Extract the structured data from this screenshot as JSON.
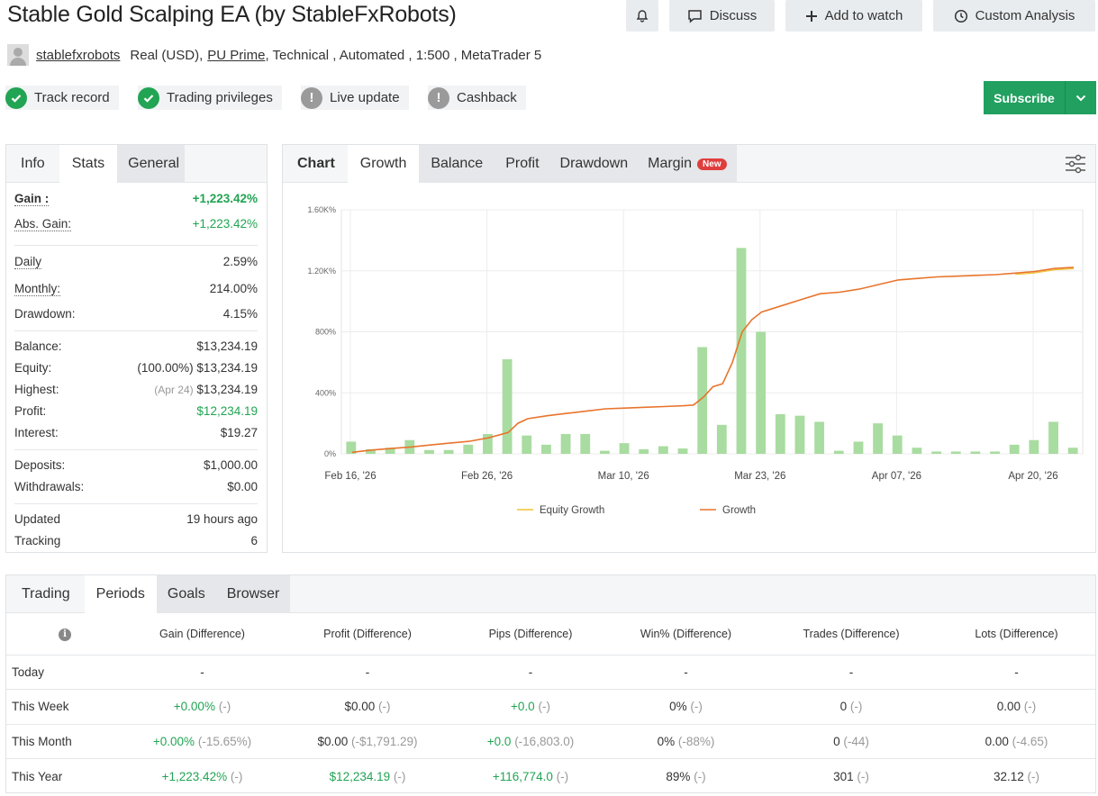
{
  "header": {
    "title": "Stable Gold Scalping EA (by StableFxRobots)",
    "buttons": {
      "discuss": "Discuss",
      "add_to_watch": "Add to watch",
      "custom_analysis": "Custom Analysis"
    }
  },
  "meta": {
    "author": "stablefxrobots",
    "account": "Real (USD),",
    "broker": "PU Prime",
    "details": ", Technical , Automated , 1:500 , MetaTrader 5"
  },
  "badges": [
    {
      "label": "Track record",
      "status": "ok"
    },
    {
      "label": "Trading privileges",
      "status": "ok"
    },
    {
      "label": "Live update",
      "status": "warn"
    },
    {
      "label": "Cashback",
      "status": "warn"
    }
  ],
  "subscribe_label": "Subscribe",
  "stats_tabs": [
    "Info",
    "Stats",
    "General"
  ],
  "stats": {
    "gain_label": "Gain :",
    "gain": "+1,223.42%",
    "abs_gain_label": "Abs. Gain:",
    "abs_gain": "+1,223.42%",
    "daily_label": "Daily",
    "daily": "2.59%",
    "monthly_label": "Monthly:",
    "monthly": "214.00%",
    "drawdown_label": "Drawdown:",
    "drawdown": "4.15%",
    "balance_label": "Balance:",
    "balance": "$13,234.19",
    "equity_label": "Equity:",
    "equity_pct": "(100.00%)",
    "equity": "$13,234.19",
    "highest_label": "Highest:",
    "highest_date": "(Apr 24)",
    "highest": "$13,234.19",
    "profit_label": "Profit:",
    "profit": "$12,234.19",
    "interest_label": "Interest:",
    "interest": "$19.27",
    "deposits_label": "Deposits:",
    "deposits": "$1,000.00",
    "withdrawals_label": "Withdrawals:",
    "withdrawals": "$0.00",
    "updated_label": "Updated",
    "updated": "19 hours ago",
    "tracking_label": "Tracking",
    "tracking": "6"
  },
  "chart_tabs": [
    "Chart",
    "Growth",
    "Balance",
    "Profit",
    "Drawdown",
    "Margin"
  ],
  "chart_new_badge": "New",
  "chart_data": {
    "type": "bar+line",
    "yticks": [
      "0%",
      "400%",
      "800%",
      "1.20K%",
      "1.60K%"
    ],
    "ylim": [
      0,
      1600
    ],
    "xticks": [
      "Feb 16, '26",
      "Feb 26, '26",
      "Mar 10, '26",
      "Mar 23, '26",
      "Apr 07, '26",
      "Apr 20, '26"
    ],
    "legend": [
      "Equity Growth",
      "Growth"
    ],
    "daily_bars": [
      80,
      30,
      40,
      90,
      25,
      25,
      60,
      130,
      620,
      120,
      60,
      130,
      130,
      20,
      70,
      30,
      50,
      35,
      700,
      190,
      1350,
      800,
      260,
      250,
      210,
      20,
      80,
      200,
      120,
      40,
      15,
      15,
      15,
      15,
      60,
      90,
      210,
      40
    ],
    "growth": [
      [
        0,
        10
      ],
      [
        1,
        25
      ],
      [
        2,
        35
      ],
      [
        3,
        45
      ],
      [
        4,
        58
      ],
      [
        5,
        70
      ],
      [
        6,
        82
      ],
      [
        7,
        105
      ],
      [
        8,
        140
      ],
      [
        8.5,
        200
      ],
      [
        9,
        230
      ],
      [
        10,
        250
      ],
      [
        11,
        265
      ],
      [
        12,
        280
      ],
      [
        13,
        295
      ],
      [
        14,
        300
      ],
      [
        15,
        305
      ],
      [
        16,
        310
      ],
      [
        17,
        315
      ],
      [
        17.5,
        320
      ],
      [
        18,
        370
      ],
      [
        18.5,
        440
      ],
      [
        19,
        460
      ],
      [
        19.5,
        600
      ],
      [
        20,
        800
      ],
      [
        20.5,
        880
      ],
      [
        21,
        930
      ],
      [
        22,
        970
      ],
      [
        23,
        1010
      ],
      [
        24,
        1050
      ],
      [
        25,
        1060
      ],
      [
        26,
        1080
      ],
      [
        27,
        1110
      ],
      [
        28,
        1140
      ],
      [
        29,
        1150
      ],
      [
        30,
        1160
      ],
      [
        31,
        1165
      ],
      [
        32,
        1170
      ],
      [
        33,
        1175
      ],
      [
        34,
        1185
      ],
      [
        35,
        1195
      ],
      [
        36,
        1215
      ],
      [
        37,
        1223
      ]
    ]
  },
  "periods_tabs": [
    "Trading",
    "Periods",
    "Goals",
    "Browser"
  ],
  "periods": {
    "headers": [
      "Gain (Difference)",
      "Profit (Difference)",
      "Pips (Difference)",
      "Win% (Difference)",
      "Trades (Difference)",
      "Lots (Difference)"
    ],
    "rows": [
      {
        "label": "Today",
        "gain": "-",
        "gain_d": "",
        "profit": "-",
        "profit_d": "",
        "pips": "-",
        "pips_d": "",
        "win": "-",
        "win_d": "",
        "trades": "-",
        "trades_d": "",
        "lots": "-",
        "lots_d": ""
      },
      {
        "label": "This Week",
        "gain": "+0.00%",
        "gain_d": "(-)",
        "profit": "$0.00",
        "profit_d": "(-)",
        "pips": "+0.0",
        "pips_d": "(-)",
        "win": "0%",
        "win_d": "(-)",
        "trades": "0",
        "trades_d": "(-)",
        "lots": "0.00",
        "lots_d": "(-)"
      },
      {
        "label": "This Month",
        "gain": "+0.00%",
        "gain_d": "(-15.65%)",
        "profit": "$0.00",
        "profit_d": "(-$1,791.29)",
        "pips": "+0.0",
        "pips_d": "(-16,803.0)",
        "win": "0%",
        "win_d": "(-88%)",
        "trades": "0",
        "trades_d": "(-44)",
        "lots": "0.00",
        "lots_d": "(-4.65)"
      },
      {
        "label": "This Year",
        "gain": "+1,223.42%",
        "gain_d": "(-)",
        "profit": "$12,234.19",
        "profit_d": "(-)",
        "pips": "+116,774.0",
        "pips_d": "(-)",
        "win": "89%",
        "win_d": "(-)",
        "trades": "301",
        "trades_d": "(-)",
        "lots": "32.12",
        "lots_d": "(-)"
      }
    ]
  }
}
